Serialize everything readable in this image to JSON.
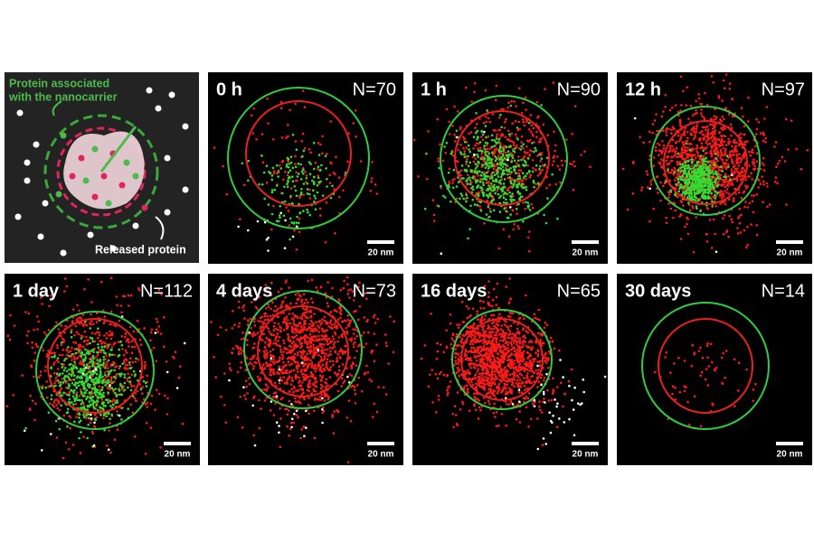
{
  "schematic": {
    "label_associated": [
      "Protein associated",
      "with the nanocarrier"
    ],
    "label_released": "Released protein"
  },
  "panels": [
    {
      "time": "0 h",
      "count": "N=70",
      "scale": "20 nm"
    },
    {
      "time": "1 h",
      "count": "N=90",
      "scale": "20 nm"
    },
    {
      "time": "12 h",
      "count": "N=97",
      "scale": "20 nm"
    },
    {
      "time": "1 day",
      "count": "N=112",
      "scale": "20 nm"
    },
    {
      "time": "4 days",
      "count": "N=73",
      "scale": "20 nm"
    },
    {
      "time": "16 days",
      "count": "N=65",
      "scale": "20 nm"
    },
    {
      "time": "30 days",
      "count": "N=14",
      "scale": "20 nm"
    }
  ]
}
